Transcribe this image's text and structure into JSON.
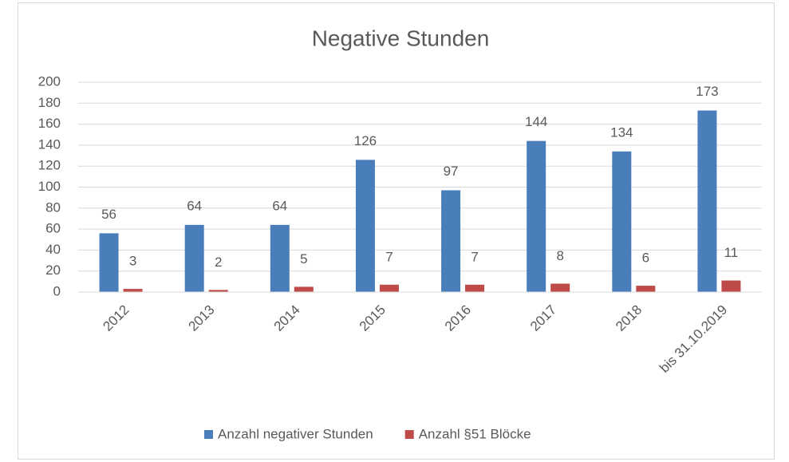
{
  "chart_data": {
    "type": "bar",
    "title": "Negative Stunden",
    "categories": [
      "2012",
      "2013",
      "2014",
      "2015",
      "2016",
      "2017",
      "2018",
      "bis 31.10.2019"
    ],
    "series": [
      {
        "name": "Anzahl negativer Stunden",
        "color": "#4a7ebb",
        "values": [
          56,
          64,
          64,
          126,
          97,
          144,
          134,
          173
        ]
      },
      {
        "name": "Anzahl §51 Blöcke",
        "color": "#be4b48",
        "values": [
          3,
          2,
          5,
          7,
          7,
          8,
          6,
          11
        ]
      }
    ],
    "ylim": [
      0,
      200
    ],
    "yticks": [
      0,
      20,
      40,
      60,
      80,
      100,
      120,
      140,
      160,
      180,
      200
    ],
    "grid": true,
    "legend": "bottom"
  }
}
